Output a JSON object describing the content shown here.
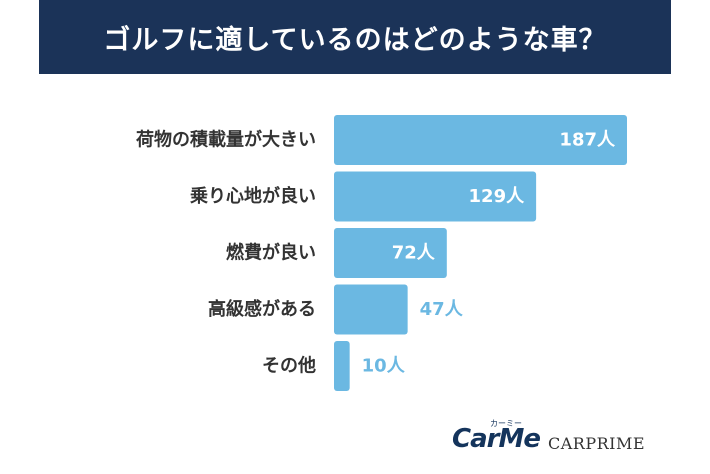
{
  "header": {
    "title": "ゴルフに適しているのはどのような車？"
  },
  "chart_data": {
    "type": "bar",
    "orientation": "horizontal",
    "categories": [
      "荷物の積載量が大きい",
      "乗り心地が良い",
      "燃費が良い",
      "高級感がある",
      "その他"
    ],
    "values": [
      187,
      129,
      72,
      47,
      10
    ],
    "value_labels": [
      "187人",
      "129人",
      "72人",
      "47人",
      "10人"
    ],
    "unit": "人",
    "bar_color": "#6bb8e2",
    "label_color_inside": "#ffffff",
    "label_color_outside": "#6bb8e2"
  },
  "footer": {
    "logo_carme": "CarMe",
    "logo_carme_kana": "カーミー",
    "logo_carprime": "CARPRIME"
  },
  "colors": {
    "title_bg": "#1b3358",
    "text_dark": "#333333"
  }
}
